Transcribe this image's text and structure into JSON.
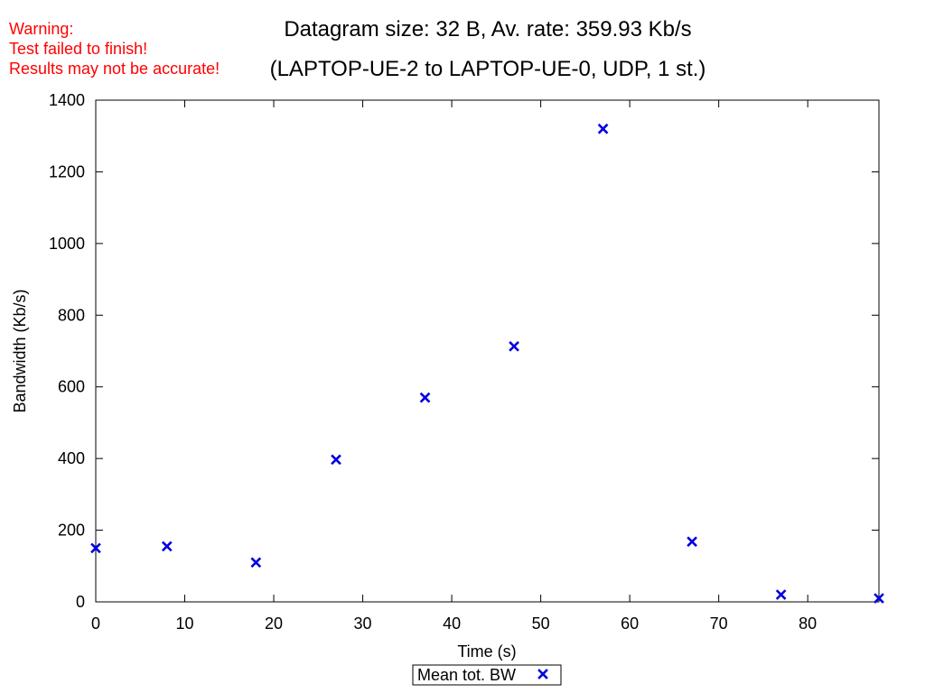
{
  "warning": {
    "lines": [
      "Warning:",
      "Test failed to finish!",
      "Results may not be accurate!"
    ],
    "color": "#ff0000"
  },
  "chart_data": {
    "type": "scatter",
    "title": "Datagram size: 32 B, Av. rate: 359.93 Kb/s",
    "subtitle": "(LAPTOP-UE-2 to LAPTOP-UE-0, UDP, 1 st.)",
    "xlabel": "Time (s)",
    "ylabel": "Bandwidth (Kb/s)",
    "xlim": [
      0,
      88
    ],
    "ylim": [
      0,
      1400
    ],
    "xticks": [
      0,
      10,
      20,
      30,
      40,
      50,
      60,
      70,
      80
    ],
    "yticks": [
      0,
      200,
      400,
      600,
      800,
      1000,
      1200,
      1400
    ],
    "grid": false,
    "legend_position": "bottom-center",
    "series": [
      {
        "name": "Mean tot. BW",
        "color": "#0000e0",
        "marker": "x",
        "x": [
          0,
          8,
          18,
          27,
          37,
          47,
          57,
          67,
          77,
          88
        ],
        "y": [
          150,
          155,
          110,
          397,
          570,
          713,
          1320,
          168,
          20,
          10
        ]
      }
    ]
  }
}
